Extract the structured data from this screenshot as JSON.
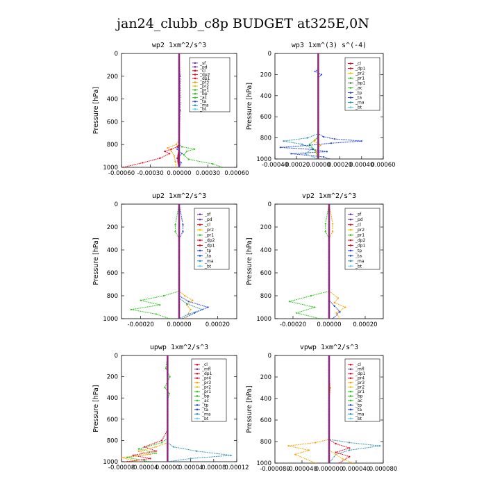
{
  "figure": {
    "title": "jan24_clubb_c8p  BUDGET at325E,0N"
  },
  "colors": {
    "sf": "#7030a0",
    "pd": "#7030a0",
    "cl": "#e8001c",
    "dp2": "#e8001c",
    "dp1": "#e8001c",
    "pr3": "#f5a000",
    "pr2": "#f0c000",
    "pr1": "#30c020",
    "bp": "#30c020",
    "ac": "#30c020",
    "tp": "#2040d0",
    "ta": "#2040d0",
    "ma": "#3090b0",
    "bt": "#60d0f0",
    "mfl": "#7030a0",
    "pr4": "#e8001c"
  },
  "chart_data": [
    {
      "type": "line",
      "title": "wp2   1xm^2/s^3",
      "ylabel": "Pressure [hPa]",
      "yticks": [
        "0",
        "200",
        "400",
        "600",
        "800",
        "1000"
      ],
      "ylim": [
        1000,
        0
      ],
      "xlim": [
        -0.0006,
        0.0006
      ],
      "xtick_values": [
        -0.0006,
        -0.0003,
        0.0,
        0.0003,
        0.0006
      ],
      "xtick_labels": [
        "-0.00060",
        "-0.00030",
        "0.00000",
        "0.00030",
        "0.00060"
      ],
      "legend": [
        "_sf",
        "_pd",
        "_cl",
        "_dp2",
        "_dp1",
        "_pr3",
        "_pr2",
        "_pr1",
        "_bp",
        "_ac",
        "_ta",
        "_ma",
        "_bt"
      ],
      "series": [
        {
          "name": "_pr1",
          "color": "#30c020",
          "x": [
            0,
            0,
            0,
            0,
            3e-05,
            0.00016,
            8e-05,
            5e-05,
            0.0001,
            0.00035,
            0.00045
          ],
          "y": [
            0,
            700,
            760,
            800,
            820,
            840,
            860,
            890,
            930,
            970,
            1000
          ]
        },
        {
          "name": "_dp1",
          "color": "#e8001c",
          "x": [
            0,
            0,
            0,
            -2e-05,
            -8e-05,
            -0.00015,
            -0.0001,
            -0.0002,
            -0.00038,
            -0.00058
          ],
          "y": [
            0,
            740,
            790,
            820,
            840,
            860,
            880,
            920,
            960,
            1000
          ]
        },
        {
          "name": "_pr3",
          "color": "#f5a000",
          "x": [
            0,
            0,
            -3e-05,
            -0.00012,
            -8e-05,
            -5e-05,
            -4e-05,
            -3e-05
          ],
          "y": [
            0,
            760,
            800,
            830,
            860,
            900,
            950,
            1000
          ]
        },
        {
          "name": "_ta",
          "color": "#2040d0",
          "x": [
            0,
            0,
            -2e-05,
            3e-05,
            -2e-05,
            2e-05,
            0
          ],
          "y": [
            0,
            800,
            840,
            880,
            920,
            960,
            1000
          ]
        },
        {
          "name": "_cl",
          "color": "#e8001c",
          "x": [
            0,
            0,
            -1e-05,
            -1e-05,
            0
          ],
          "y": [
            0,
            850,
            900,
            950,
            1000
          ]
        },
        {
          "name": "_sf",
          "color": "#7030a0",
          "x": [
            0,
            1e-05,
            1e-05,
            0,
            0
          ],
          "y": [
            0,
            200,
            500,
            800,
            1000
          ]
        }
      ]
    },
    {
      "type": "line",
      "title": "wp3   1xm^(3) s^(-4)",
      "ylabel": "Pressure [hPa]",
      "yticks": [
        "0",
        "200",
        "400",
        "600",
        "800",
        "1000"
      ],
      "ylim": [
        1000,
        0
      ],
      "xlim": [
        -0.0004,
        0.0006
      ],
      "xtick_values": [
        -0.0004,
        -0.0002,
        0.0,
        0.0002,
        0.0004,
        0.0006
      ],
      "xtick_labels": [
        "-0.00040",
        "-0.00020",
        "0.00000",
        "0.00020",
        "0.00040",
        "0.00060"
      ],
      "legend": [
        "_cl",
        "_dp1",
        "_pr2",
        "_pr1",
        "_bp1",
        "_ac",
        "_tp",
        "_ta",
        "_ma",
        "_bt"
      ],
      "series": [
        {
          "name": "_tp",
          "color": "#2040d0",
          "x": [
            0,
            0,
            -3e-05,
            3e-05,
            0,
            0,
            5e-05,
            0.00015,
            0.0004,
            0.00012,
            -8e-05,
            -0.00035,
            -5e-05,
            8e-05,
            -0.00025,
            5e-05,
            0.0001
          ],
          "y": [
            0,
            150,
            170,
            200,
            230,
            760,
            790,
            810,
            830,
            850,
            870,
            890,
            910,
            930,
            950,
            980,
            1000
          ]
        },
        {
          "name": "_ma",
          "color": "#3090b0",
          "x": [
            0,
            0,
            -0.0001,
            -0.00032,
            -0.00015,
            -5e-05,
            -0.00012,
            0
          ],
          "y": [
            0,
            760,
            800,
            830,
            860,
            900,
            950,
            1000
          ]
        },
        {
          "name": "_pr1",
          "color": "#30c020",
          "x": [
            0,
            0,
            -3e-05,
            -8e-05,
            -3e-05,
            0
          ],
          "y": [
            0,
            780,
            820,
            860,
            920,
            1000
          ]
        },
        {
          "name": "_pr2",
          "color": "#f5a000",
          "x": [
            0,
            0,
            -4e-05,
            2e-05,
            -2e-05,
            0
          ],
          "y": [
            0,
            800,
            830,
            870,
            930,
            1000
          ]
        },
        {
          "name": "_cl",
          "color": "#e8001c",
          "x": [
            0,
            0,
            0,
            0
          ],
          "y": [
            0,
            500,
            800,
            1000
          ]
        }
      ]
    },
    {
      "type": "line",
      "title": "up2   1xm^2/s^3",
      "ylabel": "Pressure [hPa]",
      "yticks": [
        "0",
        "200",
        "400",
        "600",
        "800",
        "1000"
      ],
      "ylim": [
        1000,
        0
      ],
      "xlim": [
        -0.0003,
        0.0003
      ],
      "xtick_values": [
        -0.0002,
        0.0,
        0.0002
      ],
      "xtick_labels": [
        "-0.00020",
        "0.00000",
        "0.00020"
      ],
      "legend": [
        "_sf",
        "_pd",
        "_cl",
        "_pr2",
        "_pr1",
        "_dp2",
        "_dp1",
        "_tp",
        "_ta",
        "_ma",
        "_bt"
      ],
      "series": [
        {
          "name": "_pr1",
          "color": "#30c020",
          "x": [
            0,
            -2e-05,
            -2e-05,
            0,
            0,
            -8e-05,
            -0.0002,
            -0.0001,
            -0.00025,
            -0.00012,
            -5e-05
          ],
          "y": [
            0,
            180,
            240,
            300,
            760,
            800,
            840,
            880,
            920,
            960,
            1000
          ]
        },
        {
          "name": "_ta",
          "color": "#2040d0",
          "x": [
            0,
            2e-05,
            2e-05,
            0,
            0,
            5e-05,
            0.00015,
            8e-05,
            2e-05
          ],
          "y": [
            0,
            180,
            240,
            300,
            800,
            850,
            900,
            950,
            1000
          ]
        },
        {
          "name": "_pr2",
          "color": "#f5a000",
          "x": [
            0,
            0,
            3e-05,
            7e-05,
            4e-05,
            6e-05,
            3e-05
          ],
          "y": [
            0,
            760,
            800,
            840,
            880,
            920,
            1000
          ]
        },
        {
          "name": "_ma",
          "color": "#3090b0",
          "x": [
            0,
            0,
            4e-05,
            0.00012,
            5e-05,
            0
          ],
          "y": [
            0,
            820,
            870,
            920,
            960,
            1000
          ]
        },
        {
          "name": "_cl",
          "color": "#e8001c",
          "x": [
            0,
            0,
            0,
            0
          ],
          "y": [
            0,
            400,
            800,
            1000
          ]
        }
      ]
    },
    {
      "type": "line",
      "title": "vp2   1xm^2/s^3",
      "ylabel": "Pressure [hPa]",
      "yticks": [
        "0",
        "200",
        "400",
        "600",
        "800",
        "1000"
      ],
      "ylim": [
        1000,
        0
      ],
      "xlim": [
        -0.0003,
        0.0003
      ],
      "xtick_values": [
        -0.0002,
        0.0,
        0.0002
      ],
      "xtick_labels": [
        "-0.00020",
        "0.00000",
        "0.00020"
      ],
      "legend": [
        "_sf",
        "_pd",
        "_cl",
        "_pr2",
        "_pr1",
        "_dp2",
        "_dp1",
        "_tp",
        "_ta",
        "_ma",
        "_bt"
      ],
      "series": [
        {
          "name": "_pr1",
          "color": "#30c020",
          "x": [
            0,
            -2e-05,
            -2e-05,
            0,
            0,
            -0.0001,
            -0.00022,
            -8e-05,
            -0.00018,
            -5e-05
          ],
          "y": [
            0,
            170,
            240,
            300,
            760,
            800,
            850,
            900,
            950,
            1000
          ]
        },
        {
          "name": "_pr2",
          "color": "#f5a000",
          "x": [
            0,
            2e-05,
            2e-05,
            0,
            0,
            5e-05,
            3e-05,
            9e-05,
            4e-05,
            6e-05
          ],
          "y": [
            0,
            170,
            240,
            300,
            760,
            820,
            860,
            900,
            950,
            1000
          ]
        },
        {
          "name": "_ta",
          "color": "#2040d0",
          "x": [
            0,
            0,
            3e-05,
            6e-05,
            2e-05
          ],
          "y": [
            0,
            840,
            890,
            940,
            1000
          ]
        },
        {
          "name": "_cl",
          "color": "#e8001c",
          "x": [
            0,
            0,
            0,
            0
          ],
          "y": [
            0,
            400,
            800,
            1000
          ]
        }
      ]
    },
    {
      "type": "line",
      "title": "upwp   1xm^2/s^3",
      "ylabel": "Pressure [hPa]",
      "yticks": [
        "0",
        "200",
        "400",
        "600",
        "800",
        "1000"
      ],
      "ylim": [
        1000,
        0
      ],
      "xlim": [
        -8e-05,
        0.00012
      ],
      "xtick_values": [
        -8e-05,
        -4e-05,
        0.0,
        4e-05,
        8e-05,
        0.00012
      ],
      "xtick_labels": [
        "-0.00008",
        "-0.00004",
        "0.00000",
        "0.00004",
        "0.00008",
        "0.00012"
      ],
      "legend": [
        "_cl",
        "_mfl",
        "_dp1",
        "_pr4",
        "_pr3",
        "_pr2",
        "_pr1",
        "_bp",
        "_ac",
        "_tp",
        "_ta",
        "_ma",
        "_bt"
      ],
      "series": [
        {
          "name": "_pr1",
          "color": "#30c020",
          "x": [
            0,
            -3e-06,
            4e-06,
            -5e-06,
            3e-06,
            0,
            0,
            -1e-05,
            -5e-05,
            -2e-05,
            -7e-05,
            -3e-05
          ],
          "y": [
            0,
            120,
            200,
            300,
            360,
            420,
            780,
            820,
            880,
            920,
            960,
            1000
          ]
        },
        {
          "name": "_ma",
          "color": "#3090b0",
          "x": [
            0,
            0,
            1e-05,
            5e-05,
            0.00011,
            4e-05,
            0
          ],
          "y": [
            0,
            820,
            860,
            900,
            940,
            970,
            1000
          ]
        },
        {
          "name": "_dp1",
          "color": "#e8001c",
          "x": [
            0,
            0,
            -1e-05,
            -4e-05,
            -2e-05,
            -6e-05,
            -3e-05,
            -7e-05
          ],
          "y": [
            0,
            700,
            800,
            860,
            900,
            940,
            970,
            1000
          ]
        },
        {
          "name": "_pr2",
          "color": "#f5a000",
          "x": [
            0,
            0,
            -2e-05,
            -5e-05,
            -3e-05,
            -8e-05,
            -5e-05
          ],
          "y": [
            0,
            820,
            860,
            900,
            930,
            960,
            1000
          ]
        },
        {
          "name": "_cl",
          "color": "#e8001c",
          "x": [
            0,
            0,
            0,
            0
          ],
          "y": [
            0,
            400,
            800,
            1000
          ]
        }
      ]
    },
    {
      "type": "line",
      "title": "vpwp   1xm^2/s^3",
      "ylabel": "Pressure [hPa]",
      "yticks": [
        "0",
        "200",
        "400",
        "600",
        "800",
        "1000"
      ],
      "ylim": [
        1000,
        0
      ],
      "xlim": [
        -8e-05,
        8e-05
      ],
      "xtick_values": [
        -8e-05,
        -4e-05,
        0.0,
        4e-05,
        8e-05
      ],
      "xtick_labels": [
        "-0.000080",
        "-0.000040",
        "0.000000",
        "0.000040",
        "0.000080"
      ],
      "legend": [
        "_cl",
        "_mfl",
        "_dp1",
        "_pr4",
        "_pr3",
        "_pr2",
        "_pr1",
        "_bp",
        "_ac",
        "_tp",
        "_ta",
        "_ma",
        "_bt"
      ],
      "series": [
        {
          "name": "_pr2",
          "color": "#f5a000",
          "x": [
            0,
            0,
            2e-06,
            0,
            0,
            -2e-05,
            -6e-05,
            -3e-05,
            -5e-05,
            -2e-05
          ],
          "y": [
            0,
            200,
            300,
            420,
            780,
            810,
            840,
            880,
            920,
            1000
          ]
        },
        {
          "name": "_ma",
          "color": "#3090b0",
          "x": [
            0,
            0,
            3e-05,
            7.5e-05,
            3e-05,
            1e-05,
            0
          ],
          "y": [
            0,
            780,
            810,
            840,
            880,
            920,
            1000
          ]
        },
        {
          "name": "_dp1",
          "color": "#e8001c",
          "x": [
            0,
            0,
            1e-05,
            3e-05,
            1e-05,
            3e-05,
            1.5e-05
          ],
          "y": [
            0,
            780,
            820,
            860,
            900,
            940,
            1000
          ]
        },
        {
          "name": "_pr3",
          "color": "#f0c000",
          "x": [
            0,
            0,
            1e-05,
            2e-05,
            3.5e-05
          ],
          "y": [
            0,
            880,
            920,
            960,
            1000
          ]
        },
        {
          "name": "_cl",
          "color": "#e8001c",
          "x": [
            0,
            0,
            0,
            0
          ],
          "y": [
            0,
            400,
            800,
            1000
          ]
        }
      ]
    }
  ]
}
